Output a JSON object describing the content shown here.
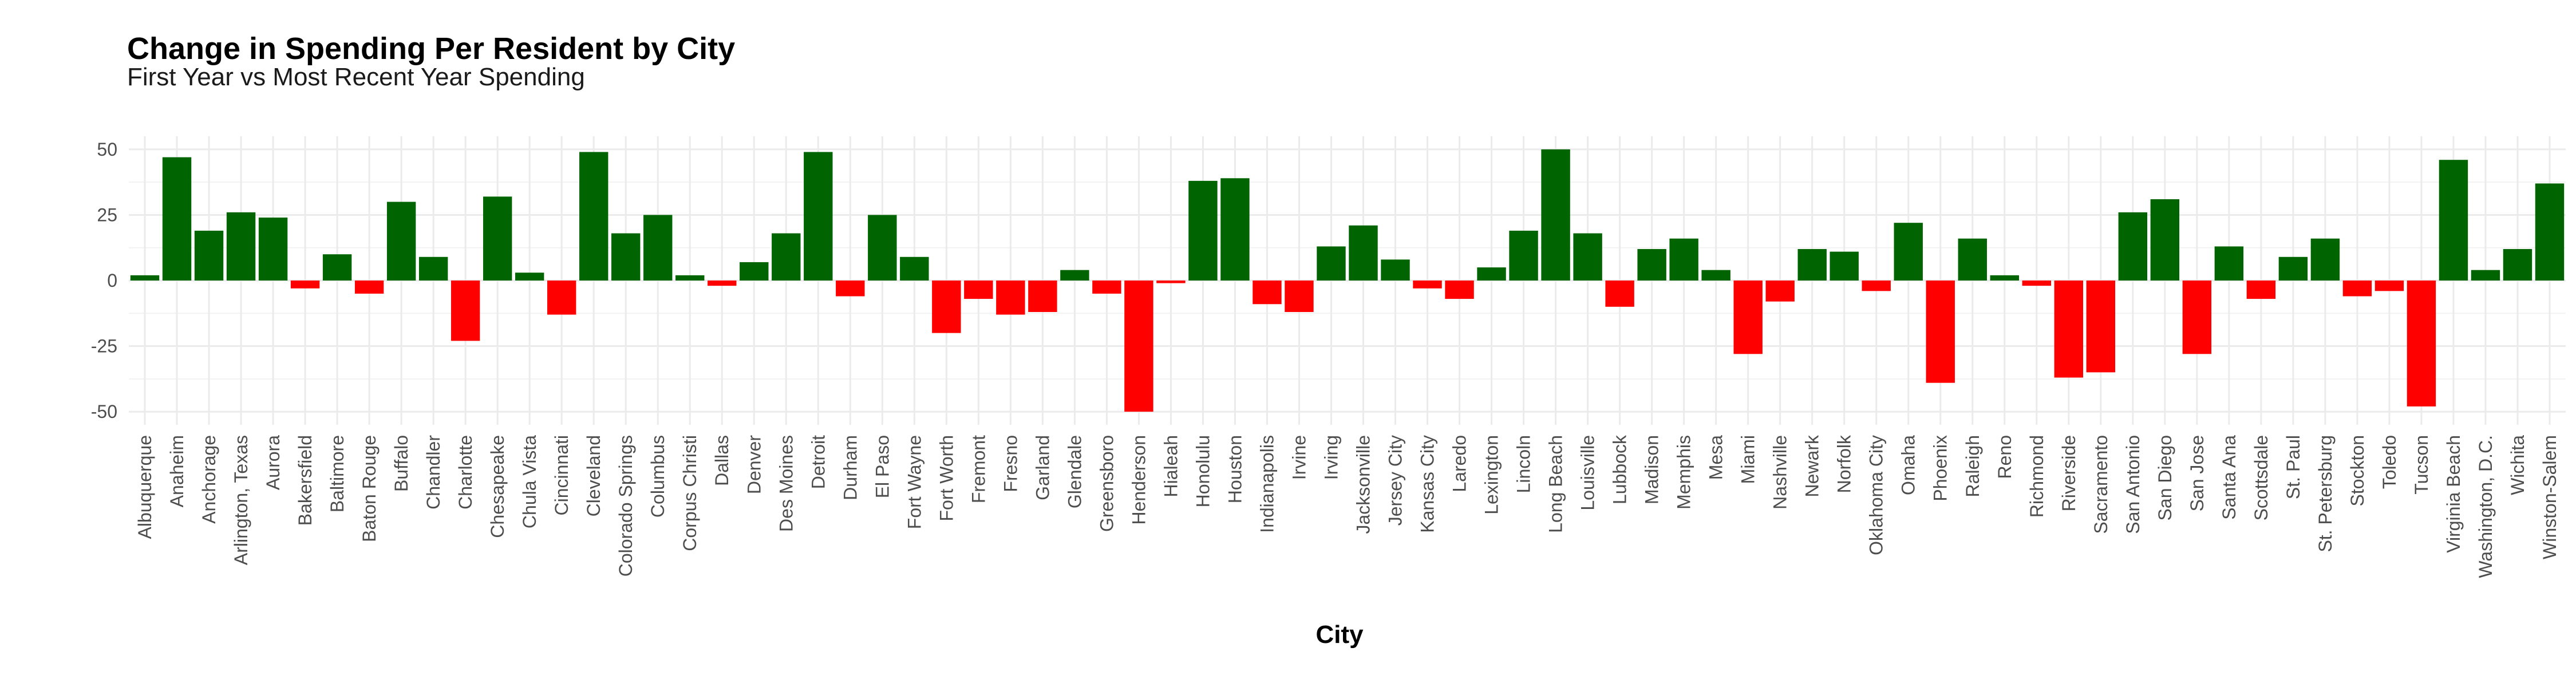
{
  "chart_data": {
    "type": "bar",
    "title": "Change in Spending Per Resident by City",
    "subtitle": "First Year vs Most Recent Year Spending",
    "xlabel": "City",
    "ylabel": "",
    "ylim": [
      -55,
      55
    ],
    "yticks": [
      -50,
      -25,
      0,
      25,
      50
    ],
    "grid": true,
    "legend": "none",
    "colors": {
      "positive": "#006400",
      "negative": "#ff0000"
    },
    "categories": [
      "Albuquerque",
      "Anaheim",
      "Anchorage",
      "Arlington, Texas",
      "Aurora",
      "Bakersfield",
      "Baltimore",
      "Baton Rouge",
      "Buffalo",
      "Chandler",
      "Charlotte",
      "Chesapeake",
      "Chula Vista",
      "Cincinnati",
      "Cleveland",
      "Colorado Springs",
      "Columbus",
      "Corpus Christi",
      "Dallas",
      "Denver",
      "Des Moines",
      "Detroit",
      "Durham",
      "El Paso",
      "Fort Wayne",
      "Fort Worth",
      "Fremont",
      "Fresno",
      "Garland",
      "Glendale",
      "Greensboro",
      "Henderson",
      "Hialeah",
      "Honolulu",
      "Houston",
      "Indianapolis",
      "Irvine",
      "Irving",
      "Jacksonville",
      "Jersey City",
      "Kansas City",
      "Laredo",
      "Lexington",
      "Lincoln",
      "Long Beach",
      "Louisville",
      "Lubbock",
      "Madison",
      "Memphis",
      "Mesa",
      "Miami",
      "Nashville",
      "Newark",
      "Norfolk",
      "Oklahoma City",
      "Omaha",
      "Phoenix",
      "Raleigh",
      "Reno",
      "Richmond",
      "Riverside",
      "Sacramento",
      "San Antonio",
      "San Diego",
      "San Jose",
      "Santa Ana",
      "Scottsdale",
      "St. Paul",
      "St. Petersburg",
      "Stockton",
      "Toledo",
      "Tucson",
      "Virginia Beach",
      "Washington, D.C.",
      "Wichita",
      "Winston-Salem"
    ],
    "values": [
      2,
      47,
      19,
      26,
      24,
      -3,
      10,
      -5,
      30,
      9,
      -23,
      32,
      3,
      -13,
      49,
      18,
      25,
      2,
      -2,
      7,
      18,
      49,
      -6,
      25,
      9,
      -20,
      -7,
      -13,
      -12,
      4,
      -5,
      -50,
      -1,
      38,
      39,
      -9,
      -12,
      13,
      21,
      8,
      -3,
      -7,
      5,
      19,
      50,
      18,
      -10,
      12,
      16,
      4,
      -28,
      -8,
      12,
      11,
      -4,
      22,
      -39,
      16,
      2,
      -2,
      -37,
      -35,
      26,
      31,
      -28,
      13,
      -7,
      9,
      16,
      -6,
      -4,
      -48,
      46,
      4,
      12,
      37
    ]
  }
}
